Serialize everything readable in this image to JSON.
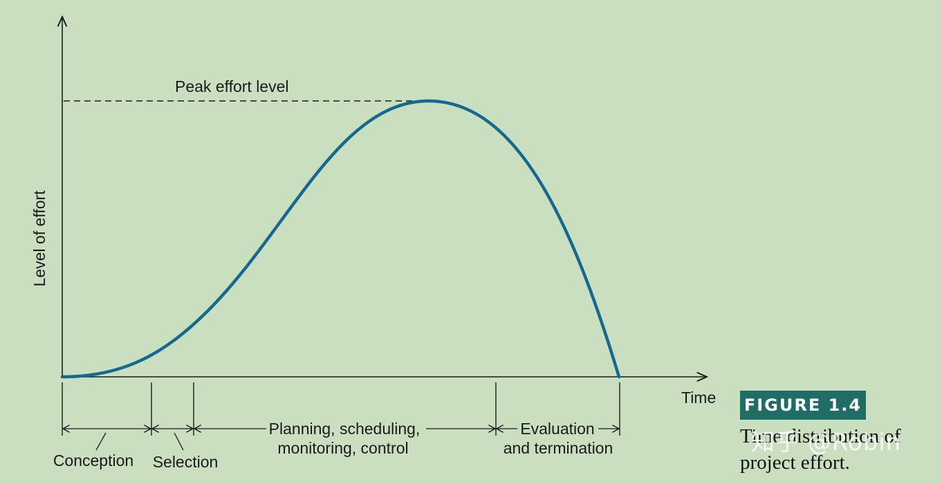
{
  "diagram": {
    "axis_y_label": "Level of effort",
    "axis_x_label": "Time",
    "peak_label": "Peak effort level",
    "phases": [
      {
        "lines": [
          "Conception"
        ]
      },
      {
        "lines": [
          "Selection"
        ]
      },
      {
        "lines": [
          "Planning, scheduling,",
          "monitoring, control"
        ]
      },
      {
        "lines": [
          "Evaluation",
          "and termination"
        ]
      }
    ],
    "curve_color": "#14698e"
  },
  "figure": {
    "badge": "FIGURE 1.4",
    "caption": "Time distribution of project effort."
  },
  "watermark": "知乎 @Robin"
}
